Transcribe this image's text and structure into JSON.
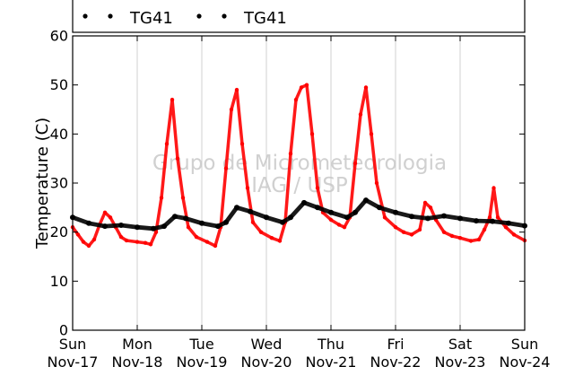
{
  "chart_data": {
    "type": "scatter",
    "title": "",
    "xlabel": "",
    "ylabel": "Temperature (C)",
    "ylim": [
      0,
      60
    ],
    "yticks": [
      0,
      10,
      20,
      30,
      40,
      50,
      60
    ],
    "xlim": [
      "2013-11-17",
      "2013-11-24"
    ],
    "x_ticks": [
      {
        "day": "Sun",
        "date": "Nov-17"
      },
      {
        "day": "Mon",
        "date": "Nov-18"
      },
      {
        "day": "Tue",
        "date": "Nov-19"
      },
      {
        "day": "Wed",
        "date": "Nov-20"
      },
      {
        "day": "Thu",
        "date": "Nov-21"
      },
      {
        "day": "Fri",
        "date": "Nov-22"
      },
      {
        "day": "Sat",
        "date": "Nov-23"
      },
      {
        "day": "Sun",
        "date": "Nov-24"
      }
    ],
    "grid": "vertical",
    "legend_position": "top",
    "watermark": [
      "Grupo de Micrometeorologia",
      "IAG / USP"
    ],
    "series": [
      {
        "name": "TG41",
        "color": "#ff0000",
        "points": [
          [
            "2013-11-17 00:00",
            21.0
          ],
          [
            "2013-11-17 02:00",
            19.5
          ],
          [
            "2013-11-17 04:00",
            18.0
          ],
          [
            "2013-11-17 06:00",
            17.2
          ],
          [
            "2013-11-17 08:00",
            18.5
          ],
          [
            "2013-11-17 10:00",
            21.5
          ],
          [
            "2013-11-17 12:00",
            24.0
          ],
          [
            "2013-11-17 14:00",
            23.0
          ],
          [
            "2013-11-17 16:00",
            21.0
          ],
          [
            "2013-11-17 18:00",
            19.0
          ],
          [
            "2013-11-17 20:00",
            18.3
          ],
          [
            "2013-11-18 00:00",
            18.0
          ],
          [
            "2013-11-18 03:00",
            17.8
          ],
          [
            "2013-11-18 05:00",
            17.5
          ],
          [
            "2013-11-18 07:00",
            20.0
          ],
          [
            "2013-11-18 09:00",
            27.0
          ],
          [
            "2013-11-18 11:00",
            38.0
          ],
          [
            "2013-11-18 13:00",
            47.0
          ],
          [
            "2013-11-18 15:00",
            35.0
          ],
          [
            "2013-11-18 17:00",
            27.0
          ],
          [
            "2013-11-18 19:00",
            21.0
          ],
          [
            "2013-11-18 22:00",
            19.0
          ],
          [
            "2013-11-19 02:00",
            18.0
          ],
          [
            "2013-11-19 05:00",
            17.2
          ],
          [
            "2013-11-19 07:00",
            21.0
          ],
          [
            "2013-11-19 09:00",
            33.0
          ],
          [
            "2013-11-19 11:00",
            45.0
          ],
          [
            "2013-11-19 13:00",
            49.0
          ],
          [
            "2013-11-19 15:00",
            38.0
          ],
          [
            "2013-11-19 17:00",
            29.0
          ],
          [
            "2013-11-19 19:00",
            22.0
          ],
          [
            "2013-11-19 22:00",
            20.0
          ],
          [
            "2013-11-20 02:00",
            18.8
          ],
          [
            "2013-11-20 05:00",
            18.2
          ],
          [
            "2013-11-20 07:00",
            22.0
          ],
          [
            "2013-11-20 09:00",
            36.0
          ],
          [
            "2013-11-20 11:00",
            47.0
          ],
          [
            "2013-11-20 13:00",
            49.5
          ],
          [
            "2013-11-20 15:00",
            50.0
          ],
          [
            "2013-11-20 17:00",
            40.0
          ],
          [
            "2013-11-20 19:00",
            29.0
          ],
          [
            "2013-11-20 21:00",
            24.0
          ],
          [
            "2013-11-21 00:00",
            22.5
          ],
          [
            "2013-11-21 03:00",
            21.5
          ],
          [
            "2013-11-21 05:00",
            21.0
          ],
          [
            "2013-11-21 07:00",
            23.0
          ],
          [
            "2013-11-21 09:00",
            34.0
          ],
          [
            "2013-11-21 11:00",
            44.0
          ],
          [
            "2013-11-21 13:00",
            49.5
          ],
          [
            "2013-11-21 15:00",
            40.0
          ],
          [
            "2013-11-21 17:00",
            30.0
          ],
          [
            "2013-11-21 20:00",
            23.0
          ],
          [
            "2013-11-22 00:00",
            21.0
          ],
          [
            "2013-11-22 03:00",
            20.0
          ],
          [
            "2013-11-22 06:00",
            19.5
          ],
          [
            "2013-11-22 09:00",
            20.5
          ],
          [
            "2013-11-22 11:00",
            26.0
          ],
          [
            "2013-11-22 13:00",
            25.0
          ],
          [
            "2013-11-22 15:00",
            22.5
          ],
          [
            "2013-11-22 18:00",
            20.0
          ],
          [
            "2013-11-22 21:00",
            19.2
          ],
          [
            "2013-11-23 00:00",
            18.8
          ],
          [
            "2013-11-23 04:00",
            18.2
          ],
          [
            "2013-11-23 07:00",
            18.5
          ],
          [
            "2013-11-23 09:00",
            20.5
          ],
          [
            "2013-11-23 11:00",
            23.0
          ],
          [
            "2013-11-23 12:30",
            29.0
          ],
          [
            "2013-11-23 14:00",
            23.0
          ],
          [
            "2013-11-23 17:00",
            21.0
          ],
          [
            "2013-11-23 20:00",
            19.5
          ],
          [
            "2013-11-24 00:00",
            18.3
          ]
        ]
      },
      {
        "name": "TG41",
        "color": "#000000",
        "points": [
          [
            "2013-11-17 00:00",
            23.0
          ],
          [
            "2013-11-17 06:00",
            21.8
          ],
          [
            "2013-11-17 12:00",
            21.2
          ],
          [
            "2013-11-17 18:00",
            21.4
          ],
          [
            "2013-11-18 00:00",
            21.0
          ],
          [
            "2013-11-18 06:00",
            20.7
          ],
          [
            "2013-11-18 10:00",
            21.2
          ],
          [
            "2013-11-18 14:00",
            23.2
          ],
          [
            "2013-11-18 18:00",
            22.8
          ],
          [
            "2013-11-19 00:00",
            21.8
          ],
          [
            "2013-11-19 06:00",
            21.2
          ],
          [
            "2013-11-19 09:00",
            22.0
          ],
          [
            "2013-11-19 13:00",
            25.0
          ],
          [
            "2013-11-19 18:00",
            24.2
          ],
          [
            "2013-11-20 00:00",
            23.0
          ],
          [
            "2013-11-20 06:00",
            22.0
          ],
          [
            "2013-11-20 09:00",
            23.0
          ],
          [
            "2013-11-20 14:00",
            26.0
          ],
          [
            "2013-11-20 19:00",
            25.0
          ],
          [
            "2013-11-21 00:00",
            24.0
          ],
          [
            "2013-11-21 06:00",
            23.0
          ],
          [
            "2013-11-21 09:00",
            24.0
          ],
          [
            "2013-11-21 13:00",
            26.5
          ],
          [
            "2013-11-21 18:00",
            25.0
          ],
          [
            "2013-11-22 00:00",
            24.0
          ],
          [
            "2013-11-22 06:00",
            23.2
          ],
          [
            "2013-11-22 12:00",
            22.8
          ],
          [
            "2013-11-22 18:00",
            23.3
          ],
          [
            "2013-11-23 00:00",
            22.8
          ],
          [
            "2013-11-23 06:00",
            22.3
          ],
          [
            "2013-11-23 12:00",
            22.2
          ],
          [
            "2013-11-23 18:00",
            21.8
          ],
          [
            "2013-11-24 00:00",
            21.3
          ]
        ]
      }
    ]
  }
}
